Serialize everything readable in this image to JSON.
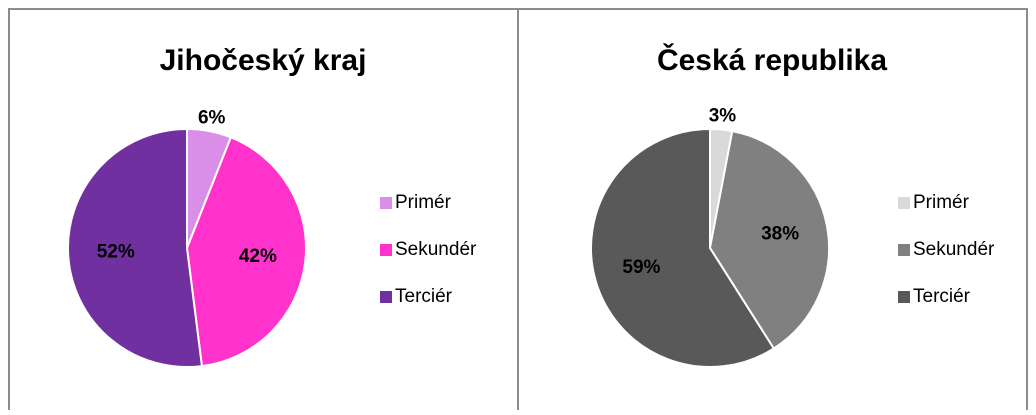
{
  "chart_data": [
    {
      "type": "pie",
      "title": "Jihočeský kraj",
      "categories": [
        "Primér",
        "Sekundér",
        "Terciér"
      ],
      "values": [
        6,
        42,
        52
      ],
      "value_labels": [
        "6%",
        "42%",
        "52%"
      ],
      "colors": [
        "#d98ee8",
        "#ff33cc",
        "#7030a0"
      ]
    },
    {
      "type": "pie",
      "title": "Česká republika",
      "categories": [
        "Primér",
        "Sekundér",
        "Terciér"
      ],
      "values": [
        3,
        38,
        59
      ],
      "value_labels": [
        "3%",
        "38%",
        "59%"
      ],
      "colors": [
        "#d9d9d9",
        "#808080",
        "#595959"
      ]
    }
  ]
}
